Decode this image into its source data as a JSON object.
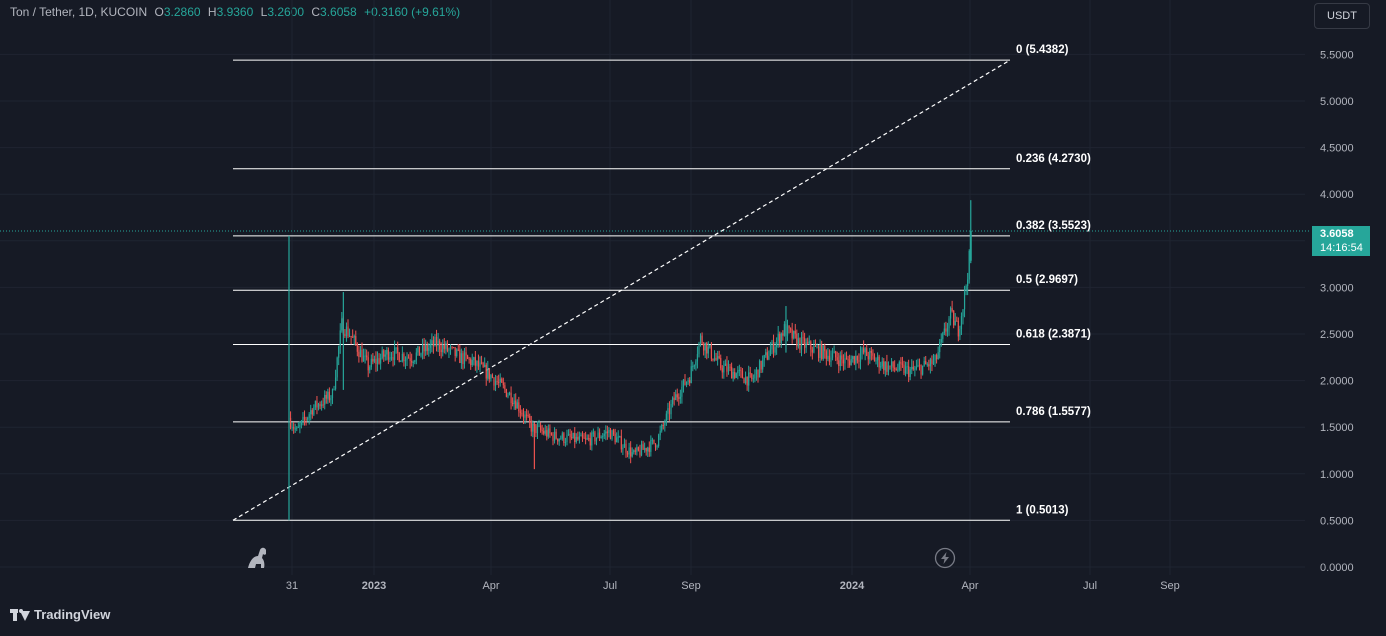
{
  "header": {
    "symbol": "Ton / Tether, 1D, KUCOIN",
    "open_key": "O",
    "open": "3.2860",
    "high_key": "H",
    "high": "3.9360",
    "low_key": "L",
    "low": "3.2600",
    "close_key": "C",
    "close": "3.6058",
    "change": "+0.3160 (+9.61%)"
  },
  "quote_currency": "USDT",
  "brand": "TradingView",
  "last_price": {
    "price": "3.6058",
    "countdown": "14:16:54"
  },
  "colors": {
    "background": "#161a25",
    "up": "#26a69a",
    "down": "#ef5350",
    "text": "#b2b5be",
    "fib_line": "#ffffff"
  },
  "icons": [
    "dinosaur-icon",
    "lightning-icon",
    "tradingview-logo"
  ],
  "chart_data": {
    "type": "candlestick",
    "y_axis": {
      "min": 0,
      "max": 5.5,
      "ticks": [
        "0.0000",
        "0.5000",
        "1.0000",
        "1.5000",
        "2.0000",
        "2.5000",
        "3.0000",
        "3.5000",
        "4.0000",
        "4.5000",
        "5.0000",
        "5.5000"
      ]
    },
    "x_axis": {
      "ticks": [
        "31",
        "2023",
        "Apr",
        "Jul",
        "Sep",
        "2024",
        "Apr",
        "Jul",
        "Sep"
      ]
    },
    "fib_retracement": {
      "start": {
        "date": "2022-12-31",
        "price": 0.5013
      },
      "end": {
        "date": "2024-04-10",
        "price": 5.4382
      },
      "levels": [
        {
          "label": "0 (5.4382)",
          "value": 5.4382
        },
        {
          "label": "0.236 (4.2730)",
          "value": 4.273
        },
        {
          "label": "0.382 (3.5523)",
          "value": 3.5523
        },
        {
          "label": "0.5 (2.9697)",
          "value": 2.9697
        },
        {
          "label": "0.618 (2.3871)",
          "value": 2.3871
        },
        {
          "label": "0.786 (1.5577)",
          "value": 1.5577
        },
        {
          "label": "1 (0.5013)",
          "value": 0.5013
        }
      ]
    },
    "price_path": [
      {
        "date": "2022-12-31",
        "price": 1.6
      },
      {
        "date": "2023-01-05",
        "price": 1.45
      },
      {
        "date": "2023-01-15",
        "price": 1.7
      },
      {
        "date": "2023-01-28",
        "price": 1.85
      },
      {
        "date": "2023-02-03",
        "price": 2.6
      },
      {
        "date": "2023-02-08",
        "price": 2.5
      },
      {
        "date": "2023-02-20",
        "price": 2.15
      },
      {
        "date": "2023-03-05",
        "price": 2.3
      },
      {
        "date": "2023-03-20",
        "price": 2.25
      },
      {
        "date": "2023-04-05",
        "price": 2.4
      },
      {
        "date": "2023-04-20",
        "price": 2.25
      },
      {
        "date": "2023-04-28",
        "price": 2.2
      },
      {
        "date": "2023-05-10",
        "price": 2.05
      },
      {
        "date": "2023-05-25",
        "price": 1.8
      },
      {
        "date": "2023-06-05",
        "price": 1.5
      },
      {
        "date": "2023-06-20",
        "price": 1.4
      },
      {
        "date": "2023-07-10",
        "price": 1.35
      },
      {
        "date": "2023-07-25",
        "price": 1.45
      },
      {
        "date": "2023-08-10",
        "price": 1.2
      },
      {
        "date": "2023-08-25",
        "price": 1.35
      },
      {
        "date": "2023-09-05",
        "price": 1.8
      },
      {
        "date": "2023-09-15",
        "price": 2.05
      },
      {
        "date": "2023-09-22",
        "price": 2.45
      },
      {
        "date": "2023-10-05",
        "price": 2.15
      },
      {
        "date": "2023-10-25",
        "price": 2.0
      },
      {
        "date": "2023-11-05",
        "price": 2.3
      },
      {
        "date": "2023-11-15",
        "price": 2.55
      },
      {
        "date": "2023-11-25",
        "price": 2.4
      },
      {
        "date": "2023-12-10",
        "price": 2.3
      },
      {
        "date": "2023-12-25",
        "price": 2.2
      },
      {
        "date": "2024-01-05",
        "price": 2.3
      },
      {
        "date": "2024-01-20",
        "price": 2.15
      },
      {
        "date": "2024-02-05",
        "price": 2.1
      },
      {
        "date": "2024-02-20",
        "price": 2.2
      },
      {
        "date": "2024-03-01",
        "price": 2.7
      },
      {
        "date": "2024-03-06",
        "price": 2.55
      },
      {
        "date": "2024-03-10",
        "price": 2.9
      },
      {
        "date": "2024-03-13",
        "price": 3.3
      },
      {
        "date": "2024-03-14",
        "price": 3.6058
      }
    ],
    "extreme_wicks": [
      {
        "date": "2022-12-31",
        "low": 0.5013,
        "high": 3.5523
      },
      {
        "date": "2023-02-04",
        "low": 1.9,
        "high": 2.95
      },
      {
        "date": "2023-06-07",
        "low": 1.05,
        "high": 1.55
      },
      {
        "date": "2023-11-16",
        "low": 2.3,
        "high": 2.8
      },
      {
        "date": "2024-03-14",
        "low": 3.26,
        "high": 3.936
      }
    ]
  }
}
